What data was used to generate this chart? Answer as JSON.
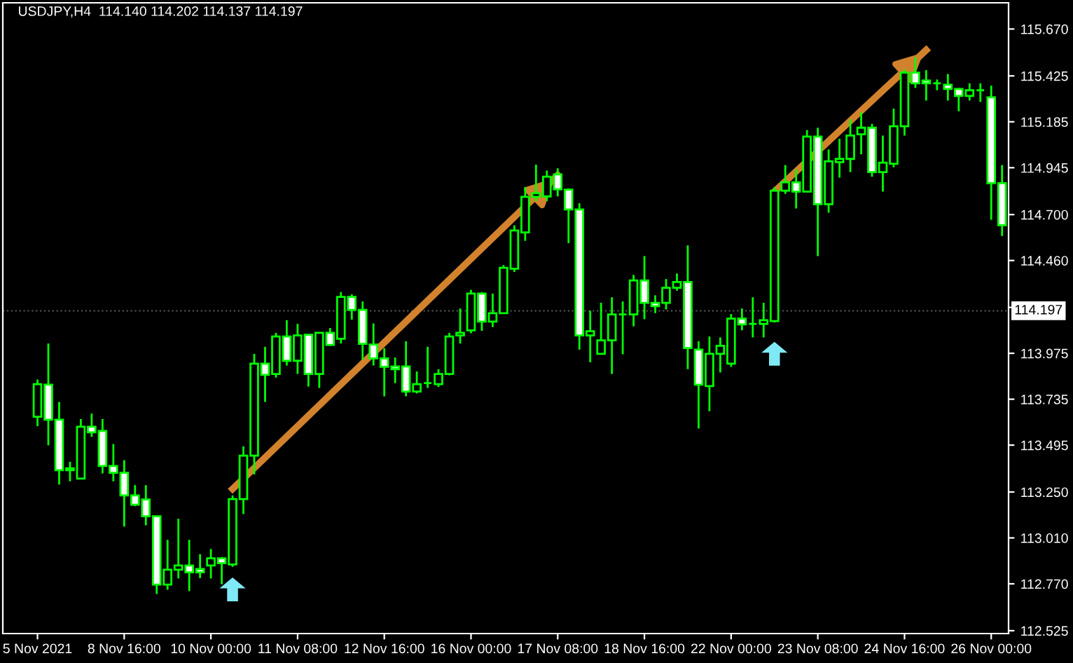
{
  "chart_data": {
    "type": "candlestick",
    "title": "USDJPY,H4  114.140 114.202 114.137 114.197",
    "categories": [
      "5 Nov 2021",
      null,
      null,
      null,
      null,
      null,
      null,
      null,
      "8 Nov 16:00",
      null,
      null,
      null,
      null,
      null,
      null,
      null,
      "10 Nov 00:00",
      null,
      null,
      null,
      null,
      null,
      null,
      null,
      "11 Nov 08:00",
      null,
      null,
      null,
      null,
      null,
      null,
      null,
      "12 Nov 16:00",
      null,
      null,
      null,
      null,
      null,
      null,
      null,
      "16 Nov 00:00",
      null,
      null,
      null,
      null,
      null,
      null,
      null,
      "17 Nov 08:00",
      null,
      null,
      null,
      null,
      null,
      null,
      null,
      "18 Nov 16:00",
      null,
      null,
      null,
      null,
      null,
      null,
      null,
      "22 Nov 00:00",
      null,
      null,
      null,
      null,
      null,
      null,
      null,
      "23 Nov 08:00",
      null,
      null,
      null,
      null,
      null,
      null,
      null,
      "24 Nov 16:00",
      null,
      null,
      null,
      null,
      null,
      null,
      null,
      "26 Nov 00:00",
      null
    ],
    "ohlc": [
      [
        113.643,
        113.838,
        113.594,
        113.814
      ],
      [
        113.811,
        114.026,
        113.494,
        113.628
      ],
      [
        113.628,
        113.721,
        113.289,
        113.364
      ],
      [
        113.364,
        113.408,
        113.306,
        113.374
      ],
      [
        113.32,
        113.631,
        113.32,
        113.591
      ],
      [
        113.591,
        113.66,
        113.538,
        113.562
      ],
      [
        113.569,
        113.631,
        113.347,
        113.386
      ],
      [
        113.386,
        113.501,
        113.306,
        113.35
      ],
      [
        113.35,
        113.416,
        113.069,
        113.232
      ],
      [
        113.232,
        113.286,
        113.176,
        113.184
      ],
      [
        113.211,
        113.286,
        113.076,
        113.123
      ],
      [
        113.123,
        113.123,
        112.717,
        112.766
      ],
      [
        112.766,
        113.0,
        112.739,
        112.844
      ],
      [
        112.844,
        113.11,
        112.798,
        112.866
      ],
      [
        112.866,
        113.0,
        112.732,
        112.83
      ],
      [
        112.847,
        112.925,
        112.8,
        112.83
      ],
      [
        112.866,
        112.952,
        112.798,
        112.903
      ],
      [
        112.903,
        112.91,
        112.768,
        112.878
      ],
      [
        112.871,
        113.232,
        112.859,
        113.213
      ],
      [
        113.213,
        113.489,
        113.135,
        113.44
      ],
      [
        113.44,
        113.972,
        113.342,
        113.921
      ],
      [
        113.921,
        114.009,
        113.721,
        113.862
      ],
      [
        113.867,
        114.082,
        113.848,
        114.063
      ],
      [
        114.063,
        114.148,
        113.911,
        113.936
      ],
      [
        113.936,
        114.129,
        113.867,
        114.068
      ],
      [
        114.072,
        114.072,
        113.801,
        113.867
      ],
      [
        113.867,
        114.082,
        113.794,
        114.082
      ],
      [
        114.082,
        114.107,
        114.014,
        114.019
      ],
      [
        114.051,
        114.295,
        114.026,
        114.27
      ],
      [
        114.27,
        114.283,
        114.151,
        114.202
      ],
      [
        114.202,
        114.246,
        113.941,
        114.024
      ],
      [
        114.021,
        114.131,
        113.911,
        113.948
      ],
      [
        113.948,
        114.002,
        113.75,
        113.904
      ],
      [
        113.906,
        113.953,
        113.819,
        113.892
      ],
      [
        113.906,
        114.038,
        113.75,
        113.775
      ],
      [
        113.775,
        113.88,
        113.765,
        113.814
      ],
      [
        113.819,
        114.009,
        113.794,
        113.819
      ],
      [
        113.814,
        113.892,
        113.799,
        113.867
      ],
      [
        113.867,
        114.082,
        113.86,
        114.063
      ],
      [
        114.068,
        114.209,
        114.026,
        114.082
      ],
      [
        114.095,
        114.307,
        114.08,
        114.287
      ],
      [
        114.287,
        114.295,
        114.092,
        114.141
      ],
      [
        114.141,
        114.287,
        114.112,
        114.185
      ],
      [
        114.185,
        114.436,
        114.185,
        114.422
      ],
      [
        114.417,
        114.644,
        114.4,
        114.617
      ],
      [
        114.607,
        114.844,
        114.563,
        114.793
      ],
      [
        114.793,
        114.961,
        114.771,
        114.812
      ],
      [
        114.795,
        114.93,
        114.771,
        114.898
      ],
      [
        114.91,
        114.942,
        114.795,
        114.832
      ],
      [
        114.83,
        114.837,
        114.551,
        114.727
      ],
      [
        114.727,
        114.759,
        113.994,
        114.068
      ],
      [
        114.068,
        114.197,
        113.928,
        114.09
      ],
      [
        113.972,
        114.239,
        113.972,
        114.043
      ],
      [
        114.043,
        114.268,
        113.867,
        114.178
      ],
      [
        114.178,
        114.246,
        113.97,
        114.178
      ],
      [
        114.178,
        114.385,
        114.116,
        114.356
      ],
      [
        114.356,
        114.483,
        114.153,
        114.239
      ],
      [
        114.239,
        114.278,
        114.185,
        114.221
      ],
      [
        114.239,
        114.363,
        114.204,
        114.317
      ],
      [
        114.317,
        114.392,
        114.302,
        114.348
      ],
      [
        114.348,
        114.539,
        113.892,
        114.002
      ],
      [
        113.994,
        114.038,
        113.582,
        113.811
      ],
      [
        113.804,
        114.063,
        113.672,
        113.972
      ],
      [
        113.972,
        114.058,
        113.875,
        114.014
      ],
      [
        113.921,
        114.18,
        113.904,
        114.156
      ],
      [
        114.156,
        114.209,
        114.095,
        114.126
      ],
      [
        114.129,
        114.268,
        114.058,
        114.129
      ],
      [
        114.129,
        114.239,
        114.058,
        114.148
      ],
      [
        114.143,
        114.844,
        114.136,
        114.825
      ],
      [
        114.825,
        114.959,
        114.808,
        114.869
      ],
      [
        114.869,
        114.937,
        114.732,
        114.82
      ],
      [
        114.82,
        115.142,
        114.82,
        115.108
      ],
      [
        115.108,
        115.154,
        114.483,
        114.754
      ],
      [
        114.754,
        115.04,
        114.71,
        114.979
      ],
      [
        114.974,
        115.096,
        114.893,
        114.991
      ],
      [
        114.991,
        115.198,
        114.922,
        115.113
      ],
      [
        115.12,
        115.235,
        115.015,
        115.154
      ],
      [
        115.154,
        115.174,
        114.898,
        114.922
      ],
      [
        114.922,
        115.113,
        114.82,
        114.971
      ],
      [
        114.966,
        115.254,
        114.947,
        115.162
      ],
      [
        115.162,
        115.46,
        115.113,
        115.442
      ],
      [
        115.442,
        115.523,
        115.362,
        115.386
      ],
      [
        115.401,
        115.455,
        115.296,
        115.386
      ],
      [
        115.386,
        115.406,
        115.35,
        115.386
      ],
      [
        115.379,
        115.435,
        115.296,
        115.357
      ],
      [
        115.357,
        115.362,
        115.24,
        115.32
      ],
      [
        115.32,
        115.386,
        115.296,
        115.35
      ],
      [
        115.35,
        115.386,
        115.289,
        115.35
      ],
      [
        115.313,
        115.374,
        114.673,
        114.864
      ],
      [
        114.864,
        114.959,
        114.588,
        114.644
      ]
    ],
    "series": [
      {
        "type": "line",
        "color": "#d2822d",
        "values": [
          null,
          null,
          null,
          null,
          null,
          null,
          null,
          null,
          null,
          null,
          null,
          null,
          null,
          null,
          null,
          null,
          null,
          null,
          113.266,
          null,
          null,
          null,
          null,
          null,
          null,
          null,
          null,
          null,
          null,
          null,
          null,
          null,
          null,
          null,
          null,
          null,
          null,
          null,
          null,
          null,
          null,
          null,
          null,
          null,
          null,
          null,
          null,
          null,
          114.906,
          null,
          null,
          null,
          null,
          null,
          null,
          null,
          null,
          null,
          null,
          null,
          null,
          null,
          null,
          null,
          null,
          null,
          null,
          null,
          null,
          null,
          null,
          null,
          null,
          null,
          null,
          null,
          null,
          null,
          null,
          null,
          null,
          null,
          null,
          null,
          null,
          null,
          null,
          null,
          null,
          null
        ]
      },
      {
        "type": "line",
        "color": "#d2822d",
        "values": [
          null,
          null,
          null,
          null,
          null,
          null,
          null,
          null,
          null,
          null,
          null,
          null,
          null,
          null,
          null,
          null,
          null,
          null,
          null,
          null,
          null,
          null,
          null,
          null,
          null,
          null,
          null,
          null,
          null,
          null,
          null,
          null,
          null,
          null,
          null,
          null,
          null,
          null,
          null,
          null,
          null,
          null,
          null,
          null,
          null,
          null,
          null,
          null,
          null,
          null,
          null,
          null,
          null,
          null,
          null,
          null,
          null,
          null,
          null,
          null,
          null,
          null,
          null,
          null,
          null,
          null,
          null,
          null,
          114.82,
          null,
          null,
          null,
          null,
          null,
          null,
          null,
          null,
          null,
          null,
          null,
          null,
          null,
          115.56,
          null,
          null,
          null,
          null,
          null,
          null,
          null
        ]
      },
      {
        "type": "scatter",
        "color": "#7fe9f5",
        "values": [
          null,
          null,
          null,
          null,
          null,
          null,
          null,
          null,
          null,
          null,
          null,
          null,
          null,
          null,
          null,
          null,
          null,
          null,
          112.735,
          null,
          null,
          null,
          null,
          null,
          null,
          null,
          null,
          null,
          null,
          null,
          null,
          null,
          null,
          null,
          null,
          null,
          null,
          null,
          null,
          null,
          null,
          null,
          null,
          null,
          null,
          null,
          null,
          null,
          null,
          null,
          null,
          null,
          null,
          null,
          null,
          null,
          null,
          null,
          null,
          null,
          null,
          null,
          null,
          null,
          null,
          null,
          null,
          null,
          113.967,
          null,
          null,
          null,
          null,
          null,
          null,
          null,
          null,
          null,
          null,
          null,
          null,
          null,
          null,
          null,
          null,
          null,
          null,
          null,
          null,
          null
        ]
      }
    ],
    "ref_lines": [
      {
        "axis": "y",
        "value": 114.197,
        "label": "114.197",
        "line_style": "dotted",
        "color": "#5a5a5a"
      }
    ],
    "ylim": [
      112.51,
      115.807
    ],
    "yticks": [
      112.525,
      {
        "value": 112.77,
        "label": "112.770"
      },
      {
        "value": 113.01,
        "label": "113.010"
      },
      {
        "value": 113.25,
        "label": "113.250"
      },
      113.495,
      113.735,
      113.975,
      {
        "value": 114.215,
        "label": null
      },
      {
        "value": 114.46,
        "label": "114.460"
      },
      {
        "value": 114.7,
        "label": "114.700"
      },
      114.945,
      115.185,
      115.425,
      {
        "value": 115.67,
        "label": "115.670"
      }
    ],
    "grid": false
  }
}
